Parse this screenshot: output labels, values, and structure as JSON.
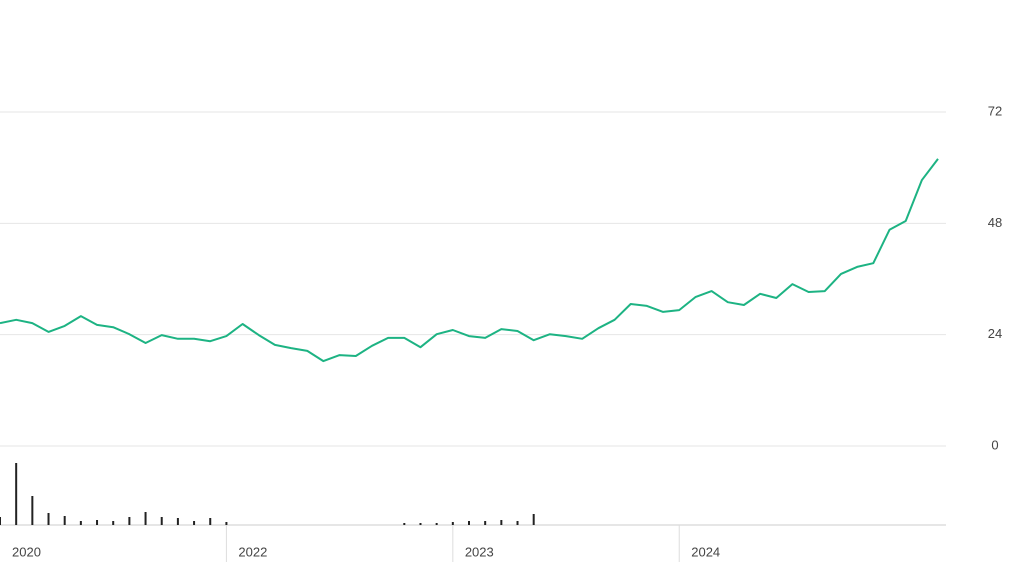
{
  "chart_data": [
    {
      "type": "line",
      "color": "#1db383",
      "ylim": [
        0,
        72
      ],
      "yticks": [
        0,
        24,
        48,
        72
      ],
      "grid": true,
      "values": [
        26.5,
        27.2,
        26.5,
        24.6,
        25.9,
        28.0,
        26.1,
        25.6,
        24.1,
        22.2,
        23.9,
        23.1,
        23.1,
        22.6,
        23.7,
        26.3,
        23.9,
        21.8,
        21.1,
        20.5,
        18.3,
        19.6,
        19.4,
        21.6,
        23.3,
        23.3,
        21.3,
        24.1,
        25.0,
        23.7,
        23.3,
        25.2,
        24.8,
        22.8,
        24.1,
        23.7,
        23.1,
        25.4,
        27.2,
        30.6,
        30.2,
        28.9,
        29.3,
        32.1,
        33.4,
        31.0,
        30.4,
        32.8,
        31.9,
        34.9,
        33.2,
        33.4,
        37.1,
        38.6,
        39.4,
        46.6,
        48.5,
        57.3,
        61.9
      ]
    },
    {
      "type": "bar",
      "color": "#222222",
      "ylim": [
        0,
        65
      ],
      "categories": [
        "2020",
        null,
        null,
        null,
        null,
        null,
        null,
        null,
        null,
        null,
        null,
        null,
        null,
        null,
        "2022",
        null,
        null,
        null,
        null,
        null,
        null,
        null,
        null,
        null,
        null,
        null,
        null,
        null,
        "2023",
        null,
        null,
        null,
        null,
        null,
        null,
        null,
        null,
        null,
        null,
        null,
        null,
        null,
        "2024",
        null,
        null,
        null,
        null,
        null,
        null,
        null,
        null,
        null,
        null,
        null,
        null,
        null,
        null,
        null,
        null
      ],
      "values": [
        8,
        62,
        29,
        12,
        9,
        4,
        5,
        4,
        8,
        13,
        8,
        7,
        4,
        7,
        3,
        0,
        0,
        0,
        0,
        0,
        0,
        0,
        0,
        0,
        0,
        2,
        2,
        2,
        3,
        4,
        4,
        5,
        4,
        11,
        null,
        null,
        null,
        null,
        null,
        null,
        null,
        null,
        null,
        null,
        null,
        null,
        null,
        null,
        null,
        null,
        null,
        null,
        null,
        null,
        null,
        null,
        null,
        null,
        null
      ]
    }
  ]
}
